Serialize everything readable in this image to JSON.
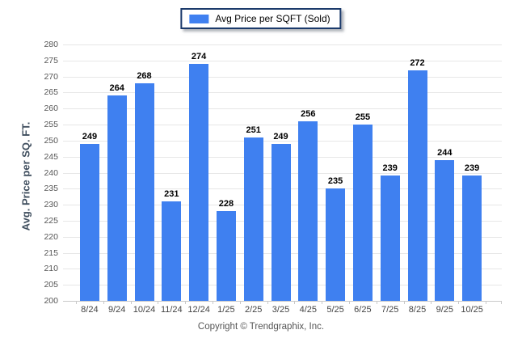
{
  "legend": {
    "label": "Avg Price per SQFT (Sold)"
  },
  "footer": {
    "text": "Copyright © Trendgraphix, Inc."
  },
  "colors": {
    "bar": "#3f80f0",
    "legend_border": "#1b3a6b",
    "grid": "#e7e7e7",
    "axis": "#c9c9c9",
    "tick_label": "#555555",
    "x_label": "#444444",
    "data_label": "#000000",
    "y_title": "#3f4e5e",
    "footer_text": "#555555"
  },
  "chart_data": {
    "type": "bar",
    "title": "Avg Price per SQFT (Sold)",
    "categories": [
      "8/24",
      "9/24",
      "10/24",
      "11/24",
      "12/24",
      "1/25",
      "2/25",
      "3/25",
      "4/25",
      "5/25",
      "6/25",
      "7/25",
      "8/25",
      "9/25",
      "10/25"
    ],
    "values": [
      249,
      264,
      268,
      231,
      274,
      228,
      251,
      249,
      256,
      235,
      255,
      239,
      272,
      244,
      239
    ],
    "xlabel": "",
    "ylabel": "Avg. Price per SQ. FT.",
    "ylim": [
      200,
      280
    ],
    "ytick_step": 5,
    "grid": true,
    "legend_position": "top-center"
  }
}
